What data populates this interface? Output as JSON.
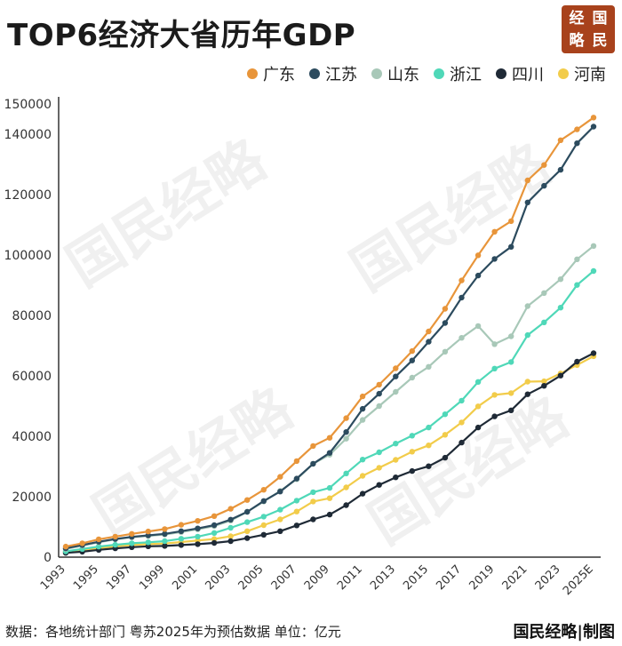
{
  "title": "TOP6经济大省历年GDP",
  "seal": [
    "经",
    "国",
    "略",
    "民"
  ],
  "footer": {
    "source": "数据：各地统计部门  粤苏2025年为预估数据 单位：亿元",
    "brand": "国民经略|制图"
  },
  "watermark": "国民经略",
  "chart_data": {
    "type": "line",
    "x": [
      "1993",
      "1994",
      "1995",
      "1996",
      "1997",
      "1998",
      "1999",
      "2000",
      "2001",
      "2002",
      "2003",
      "2004",
      "2005",
      "2006",
      "2007",
      "2008",
      "2009",
      "2010",
      "2011",
      "2012",
      "2013",
      "2014",
      "2015",
      "2016",
      "2017",
      "2018",
      "2019",
      "2020",
      "2021",
      "2022",
      "2023",
      "2024",
      "2025E"
    ],
    "x_tick_labels": [
      "1993",
      "1995",
      "1997",
      "1999",
      "2001",
      "2003",
      "2005",
      "2007",
      "2009",
      "2011",
      "2013",
      "2015",
      "2017",
      "2019",
      "2021",
      "2023",
      "2025E"
    ],
    "ylim": [
      0,
      150000
    ],
    "y_ticks": [
      0,
      20000,
      40000,
      60000,
      80000,
      100000,
      120000,
      140000,
      150000
    ],
    "grid": false,
    "legend_position": "top-right",
    "series": [
      {
        "name": "广东",
        "color": "#e8953a",
        "values": [
          3500,
          4600,
          5900,
          6800,
          7700,
          8500,
          9300,
          10700,
          12000,
          13600,
          16000,
          18900,
          22300,
          26600,
          31800,
          36800,
          39500,
          46000,
          53200,
          57100,
          62500,
          68200,
          74700,
          82200,
          91600,
          99900,
          107700,
          111200,
          124700,
          129800,
          138000,
          141600,
          145500
        ]
      },
      {
        "name": "江苏",
        "color": "#2c4b5e",
        "values": [
          2900,
          4000,
          5100,
          6000,
          6700,
          7200,
          7700,
          8600,
          9500,
          10600,
          12400,
          15000,
          18600,
          21700,
          26000,
          30900,
          34500,
          41400,
          49100,
          54100,
          59800,
          65100,
          71300,
          77500,
          85900,
          93200,
          98700,
          102700,
          117400,
          122900,
          128200,
          137000,
          142500
        ]
      },
      {
        "name": "山东",
        "color": "#a8c8b8",
        "values": [
          2700,
          3800,
          4900,
          5900,
          6600,
          7000,
          7500,
          8300,
          9200,
          10300,
          12100,
          15000,
          18400,
          21900,
          25800,
          30900,
          33900,
          39200,
          45400,
          50000,
          54700,
          59400,
          63000,
          68000,
          72600,
          76500,
          70500,
          73100,
          83100,
          87400,
          92000,
          98600,
          103000
        ]
      },
      {
        "name": "浙江",
        "color": "#4fd8b8",
        "values": [
          1900,
          2700,
          3500,
          4100,
          4600,
          4900,
          5300,
          6100,
          6800,
          8000,
          9700,
          11600,
          13400,
          15700,
          18700,
          21500,
          22900,
          27700,
          32300,
          34700,
          37600,
          40200,
          42900,
          47300,
          51800,
          58000,
          62400,
          64600,
          73500,
          77700,
          82600,
          90100,
          94700
        ]
      },
      {
        "name": "四川",
        "color": "#1f2a36",
        "values": [
          1400,
          1800,
          2400,
          2900,
          3300,
          3600,
          3700,
          4000,
          4300,
          4700,
          5300,
          6300,
          7400,
          8600,
          10500,
          12500,
          14100,
          17200,
          21000,
          23900,
          26400,
          28500,
          30100,
          32900,
          37900,
          42900,
          46600,
          48600,
          53900,
          56700,
          60100,
          64700,
          67500
        ]
      },
      {
        "name": "河南",
        "color": "#f2cc4a",
        "values": [
          1700,
          2200,
          3000,
          3600,
          4000,
          4300,
          4500,
          5000,
          5500,
          6000,
          6900,
          8600,
          10600,
          12500,
          15100,
          18400,
          19500,
          23100,
          26900,
          29600,
          32200,
          34900,
          37000,
          40500,
          44600,
          49900,
          53700,
          54300,
          58100,
          58200,
          60800,
          63600,
          66500
        ]
      }
    ]
  }
}
